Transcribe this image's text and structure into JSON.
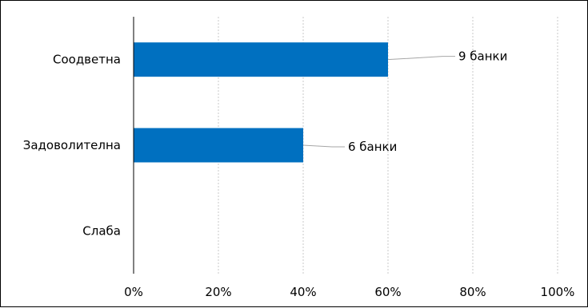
{
  "chart_data": {
    "type": "bar",
    "orientation": "horizontal",
    "xlim": [
      0,
      100
    ],
    "ticks": [
      0,
      20,
      40,
      60,
      80,
      100
    ],
    "tick_labels": [
      "0%",
      "20%",
      "40%",
      "60%",
      "80%",
      "100%"
    ],
    "grid": true,
    "bar_color": "#0070c0",
    "categories": [
      "Соодветна",
      "Задоволителна",
      "Слаба"
    ],
    "values": [
      60,
      40,
      0
    ],
    "data_labels": [
      "9 банки",
      "6 банки",
      ""
    ]
  }
}
